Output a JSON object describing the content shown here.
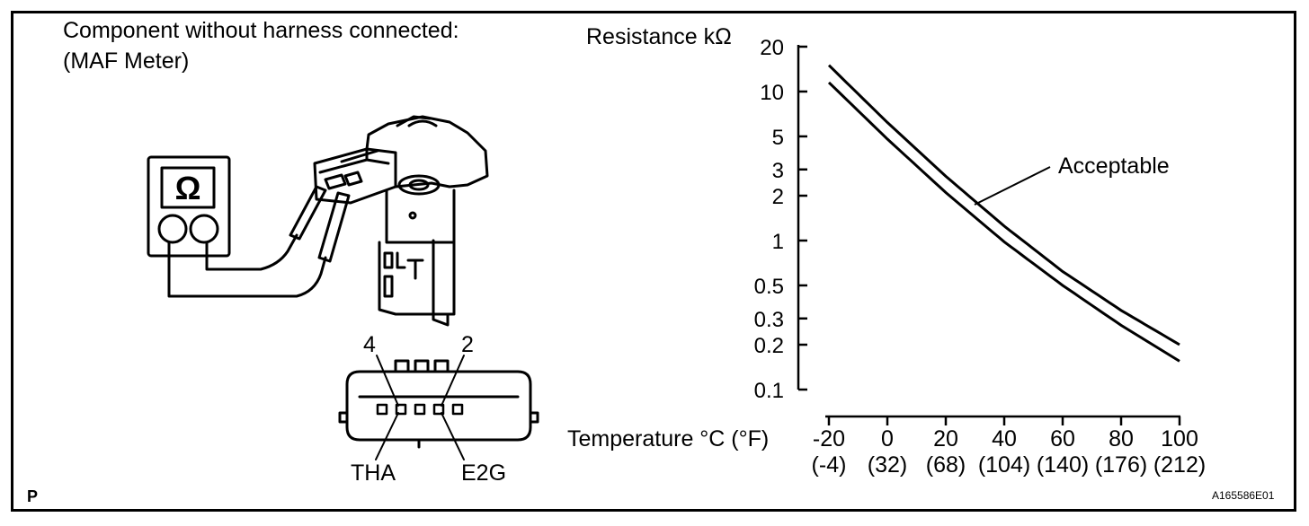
{
  "left_panel": {
    "caption_line1": "Component without harness connected:",
    "caption_line2": "(MAF Meter)",
    "ohmmeter_symbol": "Ω",
    "pin_left_number": "4",
    "pin_right_number": "2",
    "pin_left_label": "THA",
    "pin_right_label": "E2G"
  },
  "corner_mark": "P",
  "figure_code": "A165586E01",
  "chart_data": {
    "type": "line",
    "ylabel": "Resistance kΩ",
    "xlabel": "Temperature °C (°F)",
    "y_scale": "log",
    "y_ticks": [
      {
        "value": 20,
        "label": "20"
      },
      {
        "value": 10,
        "label": "10"
      },
      {
        "value": 5,
        "label": "5"
      },
      {
        "value": 3,
        "label": "3"
      },
      {
        "value": 2,
        "label": "2"
      },
      {
        "value": 1,
        "label": "1"
      },
      {
        "value": 0.5,
        "label": "0.5"
      },
      {
        "value": 0.3,
        "label": "0.3"
      },
      {
        "value": 0.2,
        "label": "0.2"
      },
      {
        "value": 0.1,
        "label": "0.1"
      }
    ],
    "x_ticks": [
      {
        "value": -20,
        "label": "-20",
        "sub": "(-4)"
      },
      {
        "value": 0,
        "label": "0",
        "sub": "(32)"
      },
      {
        "value": 20,
        "label": "20",
        "sub": "(68)"
      },
      {
        "value": 40,
        "label": "40",
        "sub": "(104)"
      },
      {
        "value": 60,
        "label": "60",
        "sub": "(140)"
      },
      {
        "value": 80,
        "label": "80",
        "sub": "(176)"
      },
      {
        "value": 100,
        "label": "100",
        "sub": "(212)"
      }
    ],
    "xlim": [
      -20,
      100
    ],
    "ylim": [
      0.1,
      20
    ],
    "annotation": "Acceptable",
    "series": [
      {
        "x": [
          -20,
          0,
          20,
          40,
          60,
          80,
          100
        ],
        "y": [
          15,
          6.2,
          2.7,
          1.25,
          0.62,
          0.34,
          0.2
        ]
      },
      {
        "x": [
          -20,
          0,
          20,
          40,
          60,
          80,
          100
        ],
        "y": [
          11.5,
          4.8,
          2.1,
          0.98,
          0.5,
          0.27,
          0.155
        ]
      }
    ],
    "grid": false
  }
}
